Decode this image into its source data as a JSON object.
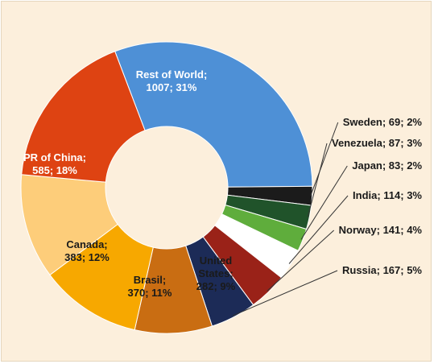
{
  "chart_data": {
    "type": "pie",
    "style": "donut",
    "title": "",
    "legend": "none",
    "unit_note": "",
    "slices": [
      {
        "name": "Rest of World",
        "value": 1007,
        "percent": 31,
        "label_lines": [
          "Rest of World;",
          "1007; 31%"
        ],
        "color": "#4e90d6",
        "label_color": "#ffffff",
        "label_style": "inside"
      },
      {
        "name": "Sweden",
        "value": 69,
        "percent": 2,
        "label_lines": [
          "Sweden; 69; 2%"
        ],
        "color": "#1b1b1b",
        "label_color": "#1a1a1a",
        "label_style": "callout"
      },
      {
        "name": "Venezuela",
        "value": 87,
        "percent": 3,
        "label_lines": [
          "Venezuela; 87; 3%"
        ],
        "color": "#20532a",
        "label_color": "#1a1a1a",
        "label_style": "callout"
      },
      {
        "name": "Japan",
        "value": 83,
        "percent": 2,
        "label_lines": [
          "Japan; 83; 2%"
        ],
        "color": "#5fad3c",
        "label_color": "#1a1a1a",
        "label_style": "callout"
      },
      {
        "name": "India",
        "value": 114,
        "percent": 3,
        "label_lines": [
          "India; 114; 3%"
        ],
        "color": "#ffffff",
        "label_color": "#1a1a1a",
        "label_style": "callout"
      },
      {
        "name": "Norway",
        "value": 141,
        "percent": 4,
        "label_lines": [
          "Norway; 141; 4%"
        ],
        "color": "#9a2218",
        "label_color": "#1a1a1a",
        "label_style": "callout"
      },
      {
        "name": "Russia",
        "value": 167,
        "percent": 5,
        "label_lines": [
          "Russia; 167; 5%"
        ],
        "color": "#1c2b57",
        "label_color": "#1a1a1a",
        "label_style": "callout"
      },
      {
        "name": "United States",
        "value": 282,
        "percent": 9,
        "label_lines": [
          "United",
          "States;",
          "282; 9%"
        ],
        "color": "#c96d12",
        "label_color": "#1a1a1a",
        "label_style": "inside"
      },
      {
        "name": "Brasil",
        "value": 370,
        "percent": 11,
        "label_lines": [
          "Brasil;",
          "370; 11%"
        ],
        "color": "#f7a800",
        "label_color": "#1a1a1a",
        "label_style": "inside"
      },
      {
        "name": "Canada",
        "value": 383,
        "percent": 12,
        "label_lines": [
          "Canada;",
          "383; 12%"
        ],
        "color": "#fdcd7a",
        "label_color": "#1a1a1a",
        "label_style": "inside"
      },
      {
        "name": "PR of China",
        "value": 585,
        "percent": 18,
        "label_lines": [
          "PR of China;",
          "585; 18%"
        ],
        "color": "#de4312",
        "label_color": "#ffffff",
        "label_style": "inside"
      }
    ]
  }
}
